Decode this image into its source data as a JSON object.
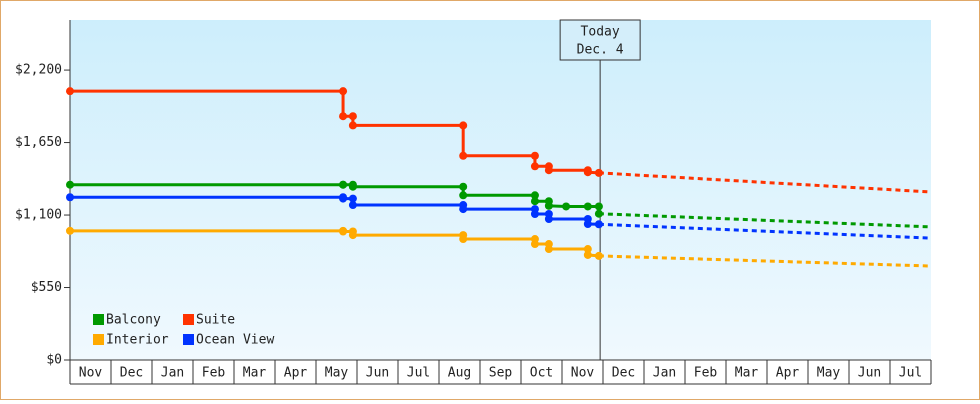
{
  "chart_data": {
    "type": "line",
    "step": true,
    "annotation": {
      "title": "Today",
      "subtitle": "Dec. 4",
      "x": 12.93
    },
    "categories": [
      "Nov",
      "Dec",
      "Jan",
      "Feb",
      "Mar",
      "Apr",
      "May",
      "Jun",
      "Jul",
      "Aug",
      "Sep",
      "Oct",
      "Nov",
      "Dec",
      "Jan",
      "Feb",
      "Mar",
      "Apr",
      "May",
      "Jun",
      "Jul",
      null
    ],
    "xlim": [
      0,
      21
    ],
    "ylim": [
      0,
      2580
    ],
    "yticks": [
      {
        "value": 0,
        "label": "$0"
      },
      {
        "value": 550,
        "label": "$550"
      },
      {
        "value": 1100,
        "label": "$1,100"
      },
      {
        "value": 1650,
        "label": "$1,650"
      },
      {
        "value": 2200,
        "label": "$2,200"
      }
    ],
    "legend": "lower left",
    "series": [
      {
        "name": "Balcony",
        "color": "#009900",
        "x": [
          0,
          6.66,
          6.66,
          6.9,
          6.9,
          9.59,
          9.59,
          11.34,
          11.34,
          11.68,
          11.68,
          12.1,
          12.63,
          12.9,
          12.9
        ],
        "values": [
          1330,
          1330,
          1330,
          1330,
          1315,
          1315,
          1250,
          1250,
          1205,
          1205,
          1170,
          1165,
          1165,
          1165,
          1110
        ],
        "forecast_x": [
          12.9,
          21
        ],
        "forecast_values": [
          1110,
          1010
        ]
      },
      {
        "name": "Suite",
        "color": "#ff3300",
        "x": [
          0,
          6.66,
          6.66,
          6.9,
          6.9,
          9.59,
          9.59,
          11.34,
          11.34,
          11.68,
          11.68,
          12.63,
          12.63,
          12.9
        ],
        "values": [
          2040,
          2040,
          1850,
          1850,
          1780,
          1780,
          1550,
          1550,
          1470,
          1470,
          1440,
          1440,
          1425,
          1420
        ],
        "forecast_x": [
          12.9,
          21
        ],
        "forecast_values": [
          1420,
          1275
        ]
      },
      {
        "name": "Interior",
        "color": "#ffaa00",
        "x": [
          0,
          6.66,
          6.66,
          6.9,
          6.9,
          9.59,
          9.59,
          11.34,
          11.34,
          11.68,
          11.68,
          12.63,
          12.63,
          12.9
        ],
        "values": [
          980,
          980,
          975,
          975,
          948,
          948,
          918,
          918,
          880,
          880,
          842,
          842,
          797,
          790
        ],
        "forecast_x": [
          12.9,
          21
        ],
        "forecast_values": [
          790,
          713
        ]
      },
      {
        "name": "Ocean View",
        "color": "#0033ff",
        "x": [
          0,
          6.66,
          6.66,
          6.9,
          6.9,
          9.59,
          9.59,
          11.34,
          11.34,
          11.68,
          11.68,
          12.63,
          12.63,
          12.9
        ],
        "values": [
          1235,
          1235,
          1225,
          1225,
          1176,
          1176,
          1145,
          1145,
          1108,
          1108,
          1070,
          1070,
          1032,
          1030
        ],
        "forecast_x": [
          12.9,
          21
        ],
        "forecast_values": [
          1030,
          925
        ]
      }
    ]
  }
}
